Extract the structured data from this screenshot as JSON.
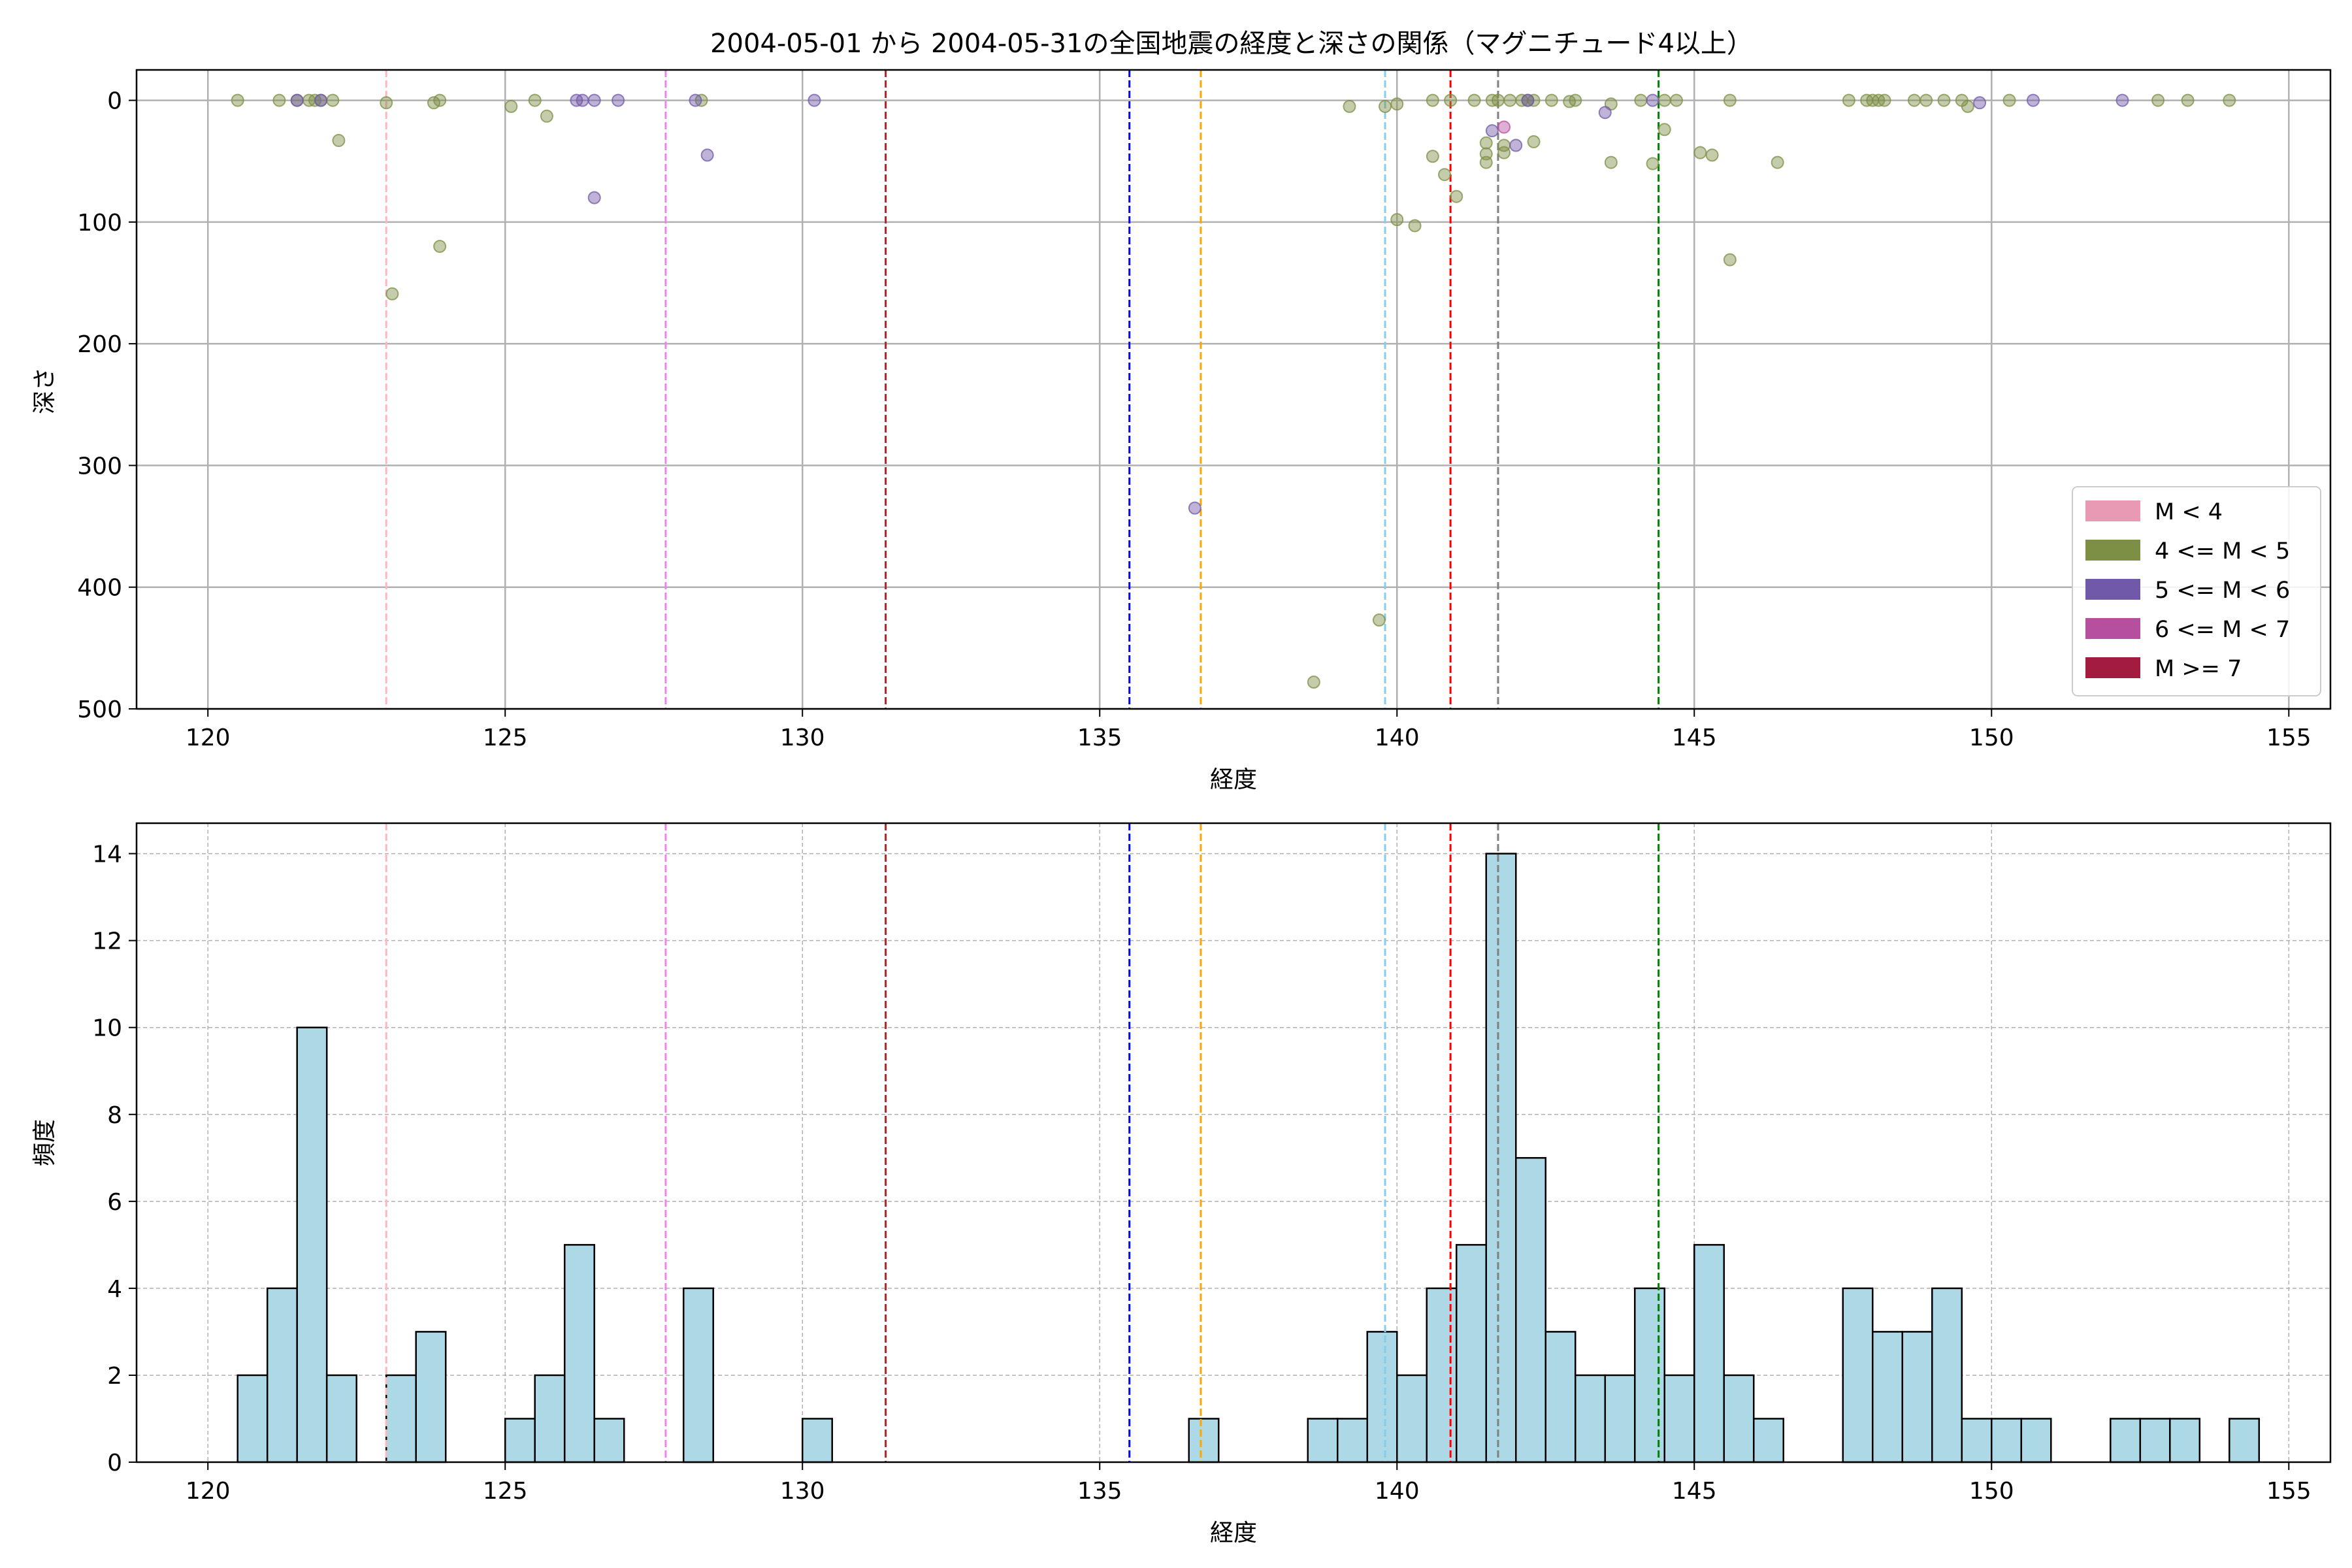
{
  "figure": {
    "title": "2004-05-01 から 2004-05-31の全国地震の経度と深さの関係（マグニチュード4以上）"
  },
  "colors": {
    "m_lt4": "#e899b3",
    "m_4_5": "#7c8f45",
    "m_5_6": "#7059a8",
    "m_6_7": "#b64f9e",
    "m_ge7": "#a31c40",
    "hist_fill": "#add8e6",
    "grid": "#b0b0b0"
  },
  "chart_data": [
    {
      "type": "scatter",
      "xlabel": "経度",
      "ylabel": "深さ",
      "xlim": [
        118.8,
        155.7
      ],
      "ylim": [
        500,
        -25
      ],
      "y_inverted": true,
      "xticks": [
        120,
        125,
        130,
        135,
        140,
        145,
        150,
        155
      ],
      "yticks": [
        0,
        100,
        200,
        300,
        400,
        500
      ],
      "grid": true,
      "legend_position": "bottom-right",
      "legend": [
        {
          "label": "M < 4",
          "color": "#e899b3"
        },
        {
          "label": "4 <= M < 5",
          "color": "#7c8f45"
        },
        {
          "label": "5 <= M < 6",
          "color": "#7059a8"
        },
        {
          "label": "6 <= M < 7",
          "color": "#b64f9e"
        },
        {
          "label": "M >= 7",
          "color": "#a31c40"
        }
      ],
      "vlines": [
        {
          "x": 123.0,
          "color": "#ffb6c1"
        },
        {
          "x": 127.7,
          "color": "#ee82ee"
        },
        {
          "x": 131.4,
          "color": "#a52a2a"
        },
        {
          "x": 135.5,
          "color": "#0000ff"
        },
        {
          "x": 136.7,
          "color": "#ffa500"
        },
        {
          "x": 139.8,
          "color": "#87ceeb"
        },
        {
          "x": 140.9,
          "color": "#ff0000"
        },
        {
          "x": 141.7,
          "color": "#808080"
        },
        {
          "x": 144.4,
          "color": "#008000"
        }
      ],
      "series": [
        {
          "name": "4 <= M < 5",
          "color": "#7c8f45",
          "points": [
            [
              120.5,
              0
            ],
            [
              121.2,
              0
            ],
            [
              121.5,
              0
            ],
            [
              121.7,
              0
            ],
            [
              121.8,
              0
            ],
            [
              121.9,
              0
            ],
            [
              122.1,
              0
            ],
            [
              122.2,
              33
            ],
            [
              123.0,
              2
            ],
            [
              123.8,
              2
            ],
            [
              123.9,
              0
            ],
            [
              123.1,
              159
            ],
            [
              123.9,
              120
            ],
            [
              125.1,
              5
            ],
            [
              125.5,
              0
            ],
            [
              125.7,
              13
            ],
            [
              128.3,
              0
            ],
            [
              138.6,
              478
            ],
            [
              139.2,
              5
            ],
            [
              139.7,
              427
            ],
            [
              139.8,
              5
            ],
            [
              140.0,
              98
            ],
            [
              140.0,
              3
            ],
            [
              140.3,
              103
            ],
            [
              140.6,
              0
            ],
            [
              140.6,
              46
            ],
            [
              140.8,
              61
            ],
            [
              140.9,
              0
            ],
            [
              141.0,
              79
            ],
            [
              141.3,
              0
            ],
            [
              141.5,
              35
            ],
            [
              141.5,
              44
            ],
            [
              141.5,
              51
            ],
            [
              141.6,
              0
            ],
            [
              141.7,
              0
            ],
            [
              141.8,
              37
            ],
            [
              141.8,
              43
            ],
            [
              141.9,
              0
            ],
            [
              142.1,
              0
            ],
            [
              142.2,
              0
            ],
            [
              142.3,
              0
            ],
            [
              142.3,
              34
            ],
            [
              142.6,
              0
            ],
            [
              142.9,
              1
            ],
            [
              143.0,
              0
            ],
            [
              143.6,
              51
            ],
            [
              143.6,
              3
            ],
            [
              144.1,
              0
            ],
            [
              144.3,
              52
            ],
            [
              144.5,
              24
            ],
            [
              144.5,
              0
            ],
            [
              144.7,
              0
            ],
            [
              145.1,
              43
            ],
            [
              145.3,
              45
            ],
            [
              145.6,
              131
            ],
            [
              145.6,
              0
            ],
            [
              146.4,
              51
            ],
            [
              147.6,
              0
            ],
            [
              147.9,
              0
            ],
            [
              148.0,
              0
            ],
            [
              148.1,
              0
            ],
            [
              148.2,
              0
            ],
            [
              148.7,
              0
            ],
            [
              148.9,
              0
            ],
            [
              149.2,
              0
            ],
            [
              149.5,
              0
            ],
            [
              149.6,
              5
            ],
            [
              150.3,
              0
            ],
            [
              152.8,
              0
            ],
            [
              153.3,
              0
            ],
            [
              154.0,
              0
            ]
          ]
        },
        {
          "name": "5 <= M < 6",
          "color": "#7059a8",
          "points": [
            [
              121.5,
              0
            ],
            [
              121.9,
              0
            ],
            [
              126.2,
              0
            ],
            [
              126.3,
              0
            ],
            [
              126.5,
              0
            ],
            [
              126.5,
              80
            ],
            [
              126.9,
              0
            ],
            [
              128.2,
              0
            ],
            [
              128.4,
              45
            ],
            [
              130.2,
              0
            ],
            [
              136.6,
              335
            ],
            [
              141.6,
              25
            ],
            [
              142.0,
              37
            ],
            [
              142.2,
              0
            ],
            [
              143.5,
              10
            ],
            [
              144.3,
              0
            ],
            [
              149.8,
              2
            ],
            [
              150.7,
              0
            ],
            [
              152.2,
              0
            ]
          ]
        },
        {
          "name": "6 <= M < 7",
          "color": "#b64f9e",
          "points": [
            [
              141.8,
              22
            ]
          ]
        }
      ]
    },
    {
      "type": "bar",
      "chart_kind": "histogram",
      "xlabel": "経度",
      "ylabel": "頻度",
      "xlim": [
        118.8,
        155.7
      ],
      "ylim": [
        0,
        14.7
      ],
      "xticks": [
        120,
        125,
        130,
        135,
        140,
        145,
        150,
        155
      ],
      "yticks": [
        0,
        2,
        4,
        6,
        8,
        10,
        12,
        14
      ],
      "grid": true,
      "bin_width": 0.5,
      "bins": [
        {
          "x0": 120.5,
          "count": 2
        },
        {
          "x0": 121.0,
          "count": 4
        },
        {
          "x0": 121.5,
          "count": 10
        },
        {
          "x0": 122.0,
          "count": 2
        },
        {
          "x0": 123.0,
          "count": 2
        },
        {
          "x0": 123.5,
          "count": 3
        },
        {
          "x0": 125.0,
          "count": 1
        },
        {
          "x0": 125.5,
          "count": 2
        },
        {
          "x0": 126.0,
          "count": 5
        },
        {
          "x0": 126.5,
          "count": 1
        },
        {
          "x0": 128.0,
          "count": 4
        },
        {
          "x0": 130.0,
          "count": 1
        },
        {
          "x0": 136.5,
          "count": 1
        },
        {
          "x0": 138.5,
          "count": 1
        },
        {
          "x0": 139.0,
          "count": 1
        },
        {
          "x0": 139.5,
          "count": 3
        },
        {
          "x0": 140.0,
          "count": 2
        },
        {
          "x0": 140.5,
          "count": 4
        },
        {
          "x0": 141.0,
          "count": 5
        },
        {
          "x0": 141.5,
          "count": 14
        },
        {
          "x0": 142.0,
          "count": 7
        },
        {
          "x0": 142.5,
          "count": 3
        },
        {
          "x0": 143.0,
          "count": 2
        },
        {
          "x0": 143.5,
          "count": 2
        },
        {
          "x0": 144.0,
          "count": 4
        },
        {
          "x0": 144.5,
          "count": 2
        },
        {
          "x0": 145.0,
          "count": 5
        },
        {
          "x0": 145.5,
          "count": 2
        },
        {
          "x0": 146.0,
          "count": 1
        },
        {
          "x0": 147.5,
          "count": 4
        },
        {
          "x0": 148.0,
          "count": 3
        },
        {
          "x0": 148.5,
          "count": 3
        },
        {
          "x0": 149.0,
          "count": 4
        },
        {
          "x0": 149.5,
          "count": 1
        },
        {
          "x0": 150.0,
          "count": 1
        },
        {
          "x0": 150.5,
          "count": 1
        },
        {
          "x0": 152.0,
          "count": 1
        },
        {
          "x0": 152.5,
          "count": 1
        },
        {
          "x0": 153.0,
          "count": 1
        },
        {
          "x0": 154.0,
          "count": 1
        }
      ],
      "vlines": [
        {
          "x": 123.0,
          "color": "#ffb6c1"
        },
        {
          "x": 127.7,
          "color": "#ee82ee"
        },
        {
          "x": 131.4,
          "color": "#a52a2a"
        },
        {
          "x": 135.5,
          "color": "#0000ff"
        },
        {
          "x": 136.7,
          "color": "#ffa500"
        },
        {
          "x": 139.8,
          "color": "#87ceeb"
        },
        {
          "x": 140.9,
          "color": "#ff0000"
        },
        {
          "x": 141.7,
          "color": "#808080"
        },
        {
          "x": 144.4,
          "color": "#008000"
        }
      ]
    }
  ]
}
